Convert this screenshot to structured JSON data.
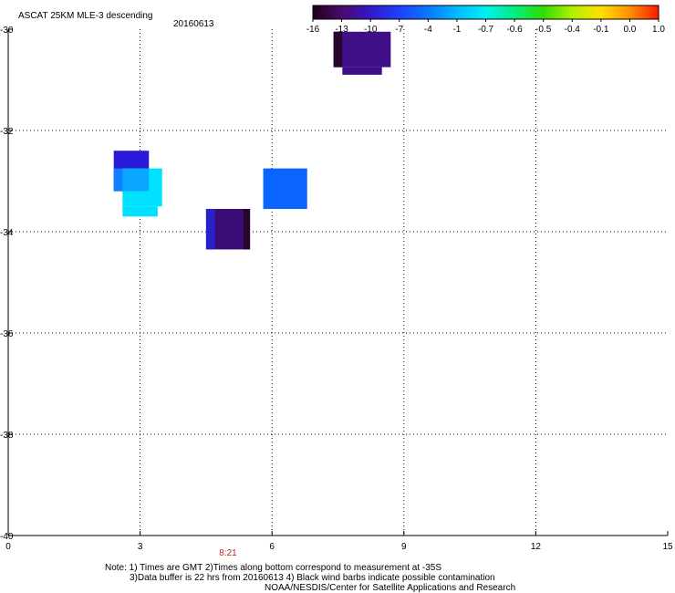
{
  "chart_data": {
    "type": "heatmap",
    "title": "ASCAT 25KM MLE-3 descending",
    "date": "20160613",
    "x_ticks": [
      "0",
      "3",
      "6",
      "9",
      "12",
      "15"
    ],
    "y_ticks": [
      "-30",
      "-32",
      "-34",
      "-36",
      "-38",
      "-40"
    ],
    "xlim": [
      0,
      15
    ],
    "ylim": [
      -40,
      -30
    ],
    "time_label": {
      "text": "8:21",
      "x": 5
    },
    "colorbar": {
      "labels": [
        "-16",
        "-13",
        "-10",
        "-7",
        "-4",
        "-1",
        "-0.7",
        "-0.6",
        "-0.5",
        "-0.4",
        "-0.1",
        "0.0",
        "1.0"
      ],
      "colors": [
        "#200018",
        "#4a0a6a",
        "#3218c8",
        "#1e40ff",
        "#0a78ff",
        "#00bbff",
        "#00f0f0",
        "#00ee80",
        "#30dd00",
        "#b0f000",
        "#ffe000",
        "#ff9000",
        "#ff1800"
      ]
    },
    "cells": [
      {
        "x": [
          7.4,
          8.7
        ],
        "y": [
          -30.05,
          -30.75
        ],
        "color": "#3f0f8a"
      },
      {
        "x": [
          7.6,
          8.5
        ],
        "y": [
          -30.75,
          -30.9
        ],
        "color": "#3f0f8a"
      },
      {
        "x": [
          7.4,
          7.6
        ],
        "y": [
          -30.05,
          -30.75
        ],
        "color": "#24062e"
      },
      {
        "x": [
          2.4,
          3.2
        ],
        "y": [
          -32.4,
          -33.2
        ],
        "color": "#2818d8"
      },
      {
        "x": [
          2.6,
          3.5
        ],
        "y": [
          -32.75,
          -33.5
        ],
        "color": "#00e0ff"
      },
      {
        "x": [
          2.6,
          3.4
        ],
        "y": [
          -33.5,
          -33.7
        ],
        "color": "#00e0ff"
      },
      {
        "x": [
          2.4,
          2.6
        ],
        "y": [
          -32.75,
          -33.2
        ],
        "color": "#1080ff"
      },
      {
        "x": [
          2.6,
          3.2
        ],
        "y": [
          -32.75,
          -33.2
        ],
        "color": "#0aa8ff"
      },
      {
        "x": [
          5.8,
          6.8
        ],
        "y": [
          -32.75,
          -33.55
        ],
        "color": "#0a64ff"
      },
      {
        "x": [
          4.5,
          5.5
        ],
        "y": [
          -33.55,
          -34.35
        ],
        "color": "#3a0c78"
      },
      {
        "x": [
          4.5,
          4.7
        ],
        "y": [
          -33.55,
          -34.35
        ],
        "color": "#2820c8"
      },
      {
        "x": [
          5.35,
          5.5
        ],
        "y": [
          -33.55,
          -34.35
        ],
        "color": "#24062e"
      }
    ]
  },
  "notes": {
    "line1": "Note: 1) Times are GMT 2)Times along bottom correspond to measurement at -35S",
    "line2": "3)Data buffer is 22 hrs from 20160613 4) Black wind barbs indicate possible contamination",
    "line3": "NOAA/NESDIS/Center for Satellite Applications and Research"
  }
}
